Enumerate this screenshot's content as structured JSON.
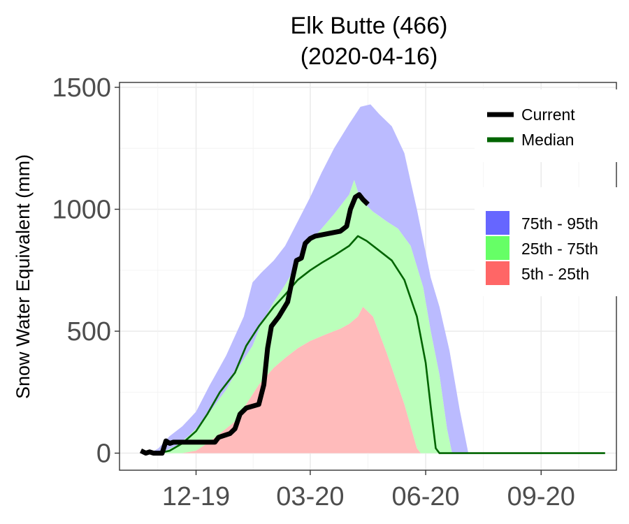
{
  "chart_data": {
    "type": "area",
    "title": "Elk Butte (466)",
    "subtitle": "(2020-04-16)",
    "xlabel": "",
    "ylabel": "Snow Water Equivalent (mm)",
    "ylim": [
      -70,
      1520
    ],
    "xlim": [
      "2019-10-01",
      "2020-10-31"
    ],
    "y_ticks": [
      0,
      500,
      1000,
      1500
    ],
    "x_ticks": [
      {
        "date": "2019-12-01",
        "label": "12-19"
      },
      {
        "date": "2020-03-01",
        "label": "03-20"
      },
      {
        "date": "2020-06-01",
        "label": "06-20"
      },
      {
        "date": "2020-09-01",
        "label": "09-20"
      }
    ],
    "grid": true,
    "legend": {
      "placement": "right",
      "lines": [
        {
          "label": "Current",
          "color": "#000000"
        },
        {
          "label": "Median",
          "color": "#006400"
        }
      ],
      "bands": [
        {
          "label": "75th - 95th",
          "color": "#6666ff"
        },
        {
          "label": "25th - 75th",
          "color": "#66ff66"
        },
        {
          "label": "5th - 25th",
          "color": "#ff6666"
        }
      ]
    },
    "band_colors": {
      "p75_95": "#bbbbff",
      "p25_75": "#bbffbb",
      "p5_25": "#ffbbbb"
    },
    "series": [
      {
        "name": "95th",
        "points": [
          [
            "2019-10-18",
            0
          ],
          [
            "2019-10-25",
            0
          ],
          [
            "2019-11-01",
            20
          ],
          [
            "2019-11-10",
            70
          ],
          [
            "2019-11-20",
            110
          ],
          [
            "2019-12-01",
            170
          ],
          [
            "2019-12-12",
            280
          ],
          [
            "2019-12-25",
            400
          ],
          [
            "2020-01-01",
            480
          ],
          [
            "2020-01-08",
            560
          ],
          [
            "2020-01-15",
            700
          ],
          [
            "2020-01-22",
            740
          ],
          [
            "2020-02-01",
            790
          ],
          [
            "2020-02-10",
            850
          ],
          [
            "2020-02-20",
            950
          ],
          [
            "2020-03-01",
            1050
          ],
          [
            "2020-03-10",
            1150
          ],
          [
            "2020-03-20",
            1250
          ],
          [
            "2020-04-01",
            1350
          ],
          [
            "2020-04-10",
            1420
          ],
          [
            "2020-04-18",
            1430
          ],
          [
            "2020-04-25",
            1390
          ],
          [
            "2020-05-05",
            1340
          ],
          [
            "2020-05-15",
            1230
          ],
          [
            "2020-05-25",
            1000
          ],
          [
            "2020-06-05",
            720
          ],
          [
            "2020-06-12",
            600
          ],
          [
            "2020-06-20",
            420
          ],
          [
            "2020-06-28",
            180
          ],
          [
            "2020-07-05",
            0
          ]
        ]
      },
      {
        "name": "75th",
        "points": [
          [
            "2019-10-25",
            0
          ],
          [
            "2019-11-05",
            5
          ],
          [
            "2019-11-15",
            30
          ],
          [
            "2019-11-25",
            70
          ],
          [
            "2019-12-05",
            120
          ],
          [
            "2019-12-15",
            190
          ],
          [
            "2019-12-25",
            260
          ],
          [
            "2020-01-05",
            360
          ],
          [
            "2020-01-15",
            440
          ],
          [
            "2020-01-22",
            530
          ],
          [
            "2020-02-01",
            620
          ],
          [
            "2020-02-10",
            690
          ],
          [
            "2020-02-20",
            780
          ],
          [
            "2020-03-01",
            870
          ],
          [
            "2020-03-10",
            920
          ],
          [
            "2020-03-20",
            980
          ],
          [
            "2020-04-01",
            1060
          ],
          [
            "2020-04-05",
            1120
          ],
          [
            "2020-04-10",
            1040
          ],
          [
            "2020-04-20",
            990
          ],
          [
            "2020-05-01",
            950
          ],
          [
            "2020-05-10",
            920
          ],
          [
            "2020-05-20",
            850
          ],
          [
            "2020-05-30",
            680
          ],
          [
            "2020-06-05",
            500
          ],
          [
            "2020-06-12",
            320
          ],
          [
            "2020-06-18",
            100
          ],
          [
            "2020-06-22",
            0
          ]
        ]
      },
      {
        "name": "25th",
        "points": [
          [
            "2019-11-10",
            0
          ],
          [
            "2019-11-20",
            0
          ],
          [
            "2019-12-01",
            10
          ],
          [
            "2019-12-10",
            40
          ],
          [
            "2019-12-20",
            80
          ],
          [
            "2020-01-01",
            130
          ],
          [
            "2020-01-10",
            200
          ],
          [
            "2020-01-20",
            280
          ],
          [
            "2020-02-01",
            350
          ],
          [
            "2020-02-10",
            390
          ],
          [
            "2020-02-20",
            430
          ],
          [
            "2020-03-01",
            460
          ],
          [
            "2020-03-15",
            490
          ],
          [
            "2020-03-25",
            510
          ],
          [
            "2020-04-01",
            530
          ],
          [
            "2020-04-08",
            560
          ],
          [
            "2020-04-12",
            600
          ],
          [
            "2020-04-20",
            560
          ],
          [
            "2020-05-01",
            410
          ],
          [
            "2020-05-15",
            200
          ],
          [
            "2020-05-25",
            20
          ],
          [
            "2020-05-28",
            0
          ]
        ]
      },
      {
        "name": "5th",
        "points": [
          [
            "2019-11-20",
            0
          ],
          [
            "2019-12-05",
            0
          ],
          [
            "2019-12-15",
            0
          ],
          [
            "2020-01-01",
            0
          ]
        ]
      },
      {
        "name": "Median",
        "points": [
          [
            "2019-11-01",
            0
          ],
          [
            "2019-11-10",
            10
          ],
          [
            "2019-11-20",
            40
          ],
          [
            "2019-12-01",
            90
          ],
          [
            "2019-12-10",
            160
          ],
          [
            "2019-12-20",
            250
          ],
          [
            "2020-01-01",
            330
          ],
          [
            "2020-01-10",
            440
          ],
          [
            "2020-01-20",
            520
          ],
          [
            "2020-02-01",
            600
          ],
          [
            "2020-02-10",
            650
          ],
          [
            "2020-02-20",
            710
          ],
          [
            "2020-03-01",
            750
          ],
          [
            "2020-03-10",
            780
          ],
          [
            "2020-03-20",
            810
          ],
          [
            "2020-04-01",
            850
          ],
          [
            "2020-04-08",
            890
          ],
          [
            "2020-04-15",
            870
          ],
          [
            "2020-04-25",
            830
          ],
          [
            "2020-05-05",
            790
          ],
          [
            "2020-05-15",
            710
          ],
          [
            "2020-05-25",
            560
          ],
          [
            "2020-06-01",
            370
          ],
          [
            "2020-06-05",
            190
          ],
          [
            "2020-06-09",
            20
          ],
          [
            "2020-06-12",
            0
          ],
          [
            "2020-10-22",
            0
          ]
        ]
      },
      {
        "name": "Current",
        "points": [
          [
            "2019-10-18",
            10
          ],
          [
            "2019-10-22",
            0
          ],
          [
            "2019-10-25",
            5
          ],
          [
            "2019-10-28",
            0
          ],
          [
            "2019-11-01",
            0
          ],
          [
            "2019-11-04",
            0
          ],
          [
            "2019-11-07",
            50
          ],
          [
            "2019-11-10",
            40
          ],
          [
            "2019-11-13",
            45
          ],
          [
            "2019-11-20",
            45
          ],
          [
            "2019-11-30",
            45
          ],
          [
            "2019-12-10",
            45
          ],
          [
            "2019-12-16",
            45
          ],
          [
            "2019-12-19",
            65
          ],
          [
            "2019-12-28",
            80
          ],
          [
            "2020-01-01",
            100
          ],
          [
            "2020-01-05",
            160
          ],
          [
            "2020-01-10",
            185
          ],
          [
            "2020-01-20",
            200
          ],
          [
            "2020-01-24",
            280
          ],
          [
            "2020-01-27",
            430
          ],
          [
            "2020-01-30",
            520
          ],
          [
            "2020-02-05",
            560
          ],
          [
            "2020-02-12",
            620
          ],
          [
            "2020-02-16",
            720
          ],
          [
            "2020-02-19",
            790
          ],
          [
            "2020-02-23",
            800
          ],
          [
            "2020-02-26",
            860
          ],
          [
            "2020-03-01",
            880
          ],
          [
            "2020-03-05",
            890
          ],
          [
            "2020-03-15",
            900
          ],
          [
            "2020-03-25",
            910
          ],
          [
            "2020-03-30",
            930
          ],
          [
            "2020-04-02",
            1000
          ],
          [
            "2020-04-06",
            1050
          ],
          [
            "2020-04-09",
            1060
          ],
          [
            "2020-04-12",
            1040
          ],
          [
            "2020-04-16",
            1020
          ]
        ]
      }
    ]
  }
}
